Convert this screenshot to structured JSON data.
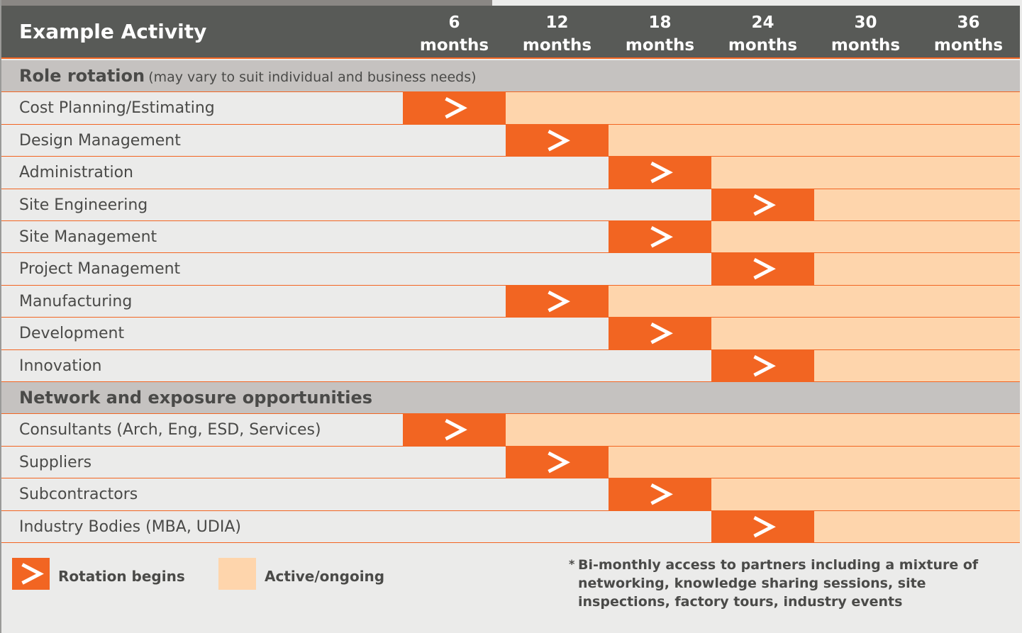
{
  "header": {
    "title": "Example Activity",
    "columns": [
      6,
      12,
      18,
      24,
      30,
      36
    ],
    "column_unit": "months"
  },
  "sections": [
    {
      "title": "Role rotation",
      "note": "(may vary to suit individual and business needs)",
      "rows": [
        {
          "label": "Cost Planning/Estimating",
          "start": 6
        },
        {
          "label": "Design Management",
          "start": 12
        },
        {
          "label": "Administration",
          "start": 18
        },
        {
          "label": "Site Engineering",
          "start": 24
        },
        {
          "label": "Site Management",
          "start": 18
        },
        {
          "label": "Project Management",
          "start": 24
        },
        {
          "label": "Manufacturing",
          "start": 12
        },
        {
          "label": "Development",
          "start": 18
        },
        {
          "label": "Innovation",
          "start": 24
        }
      ]
    },
    {
      "title": "Network and exposure opportunities",
      "rows": [
        {
          "label": "Consultants (Arch, Eng, ESD, Services)",
          "start": 6
        },
        {
          "label": "Suppliers",
          "start": 12
        },
        {
          "label": "Subcontractors",
          "start": 18
        },
        {
          "label": "Industry Bodies (MBA, UDIA)",
          "start": 24
        }
      ]
    }
  ],
  "legend": [
    {
      "label": "Rotation begins"
    },
    {
      "label": "Active/ongoing"
    }
  ],
  "footnote": {
    "marker": "*",
    "text": "Bi-monthly access to partners including a mixture of networking, knowledge sharing sessions, site inspections, factory tours, industry events"
  }
}
